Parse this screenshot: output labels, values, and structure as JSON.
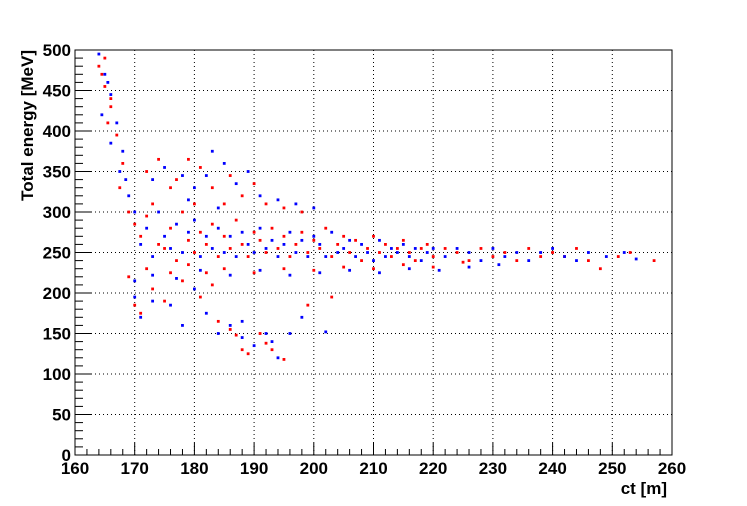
{
  "chart_data": {
    "type": "scatter",
    "title": "",
    "xlabel": "ct [m]",
    "ylabel": "Total energy [MeV]",
    "xlim": [
      160,
      260
    ],
    "ylim": [
      0,
      500
    ],
    "xticks": [
      160,
      170,
      180,
      190,
      200,
      210,
      220,
      230,
      240,
      250,
      260
    ],
    "yticks": [
      0,
      50,
      100,
      150,
      200,
      250,
      300,
      350,
      400,
      450,
      500
    ],
    "grid": true,
    "legend": "none",
    "series": [
      {
        "color": "#ff0000",
        "points": [
          [
            164,
            480
          ],
          [
            165,
            455
          ],
          [
            166,
            430
          ],
          [
            164.5,
            470
          ],
          [
            165.5,
            410
          ],
          [
            167,
            395
          ],
          [
            166,
            440
          ],
          [
            165,
            490
          ],
          [
            168,
            360
          ],
          [
            167.5,
            330
          ],
          [
            169,
            300
          ],
          [
            170,
            285
          ],
          [
            171,
            270
          ],
          [
            172,
            295
          ],
          [
            173,
            310
          ],
          [
            174,
            260
          ],
          [
            175,
            255
          ],
          [
            176,
            280
          ],
          [
            177,
            240
          ],
          [
            178,
            300
          ],
          [
            179,
            265
          ],
          [
            180,
            250
          ],
          [
            181,
            275
          ],
          [
            182,
            260
          ],
          [
            183,
            285
          ],
          [
            184,
            245
          ],
          [
            185,
            270
          ],
          [
            186,
            255
          ],
          [
            187,
            290
          ],
          [
            188,
            260
          ],
          [
            189,
            245
          ],
          [
            190,
            275
          ],
          [
            191,
            265
          ],
          [
            192,
            250
          ],
          [
            193,
            280
          ],
          [
            194,
            255
          ],
          [
            195,
            270
          ],
          [
            196,
            245
          ],
          [
            197,
            260
          ],
          [
            198,
            275
          ],
          [
            199,
            250
          ],
          [
            200,
            265
          ],
          [
            201,
            255
          ],
          [
            202,
            280
          ],
          [
            203,
            245
          ],
          [
            204,
            260
          ],
          [
            205,
            270
          ],
          [
            206,
            250
          ],
          [
            207,
            265
          ],
          [
            208,
            240
          ],
          [
            209,
            255
          ],
          [
            210,
            270
          ],
          [
            211,
            250
          ],
          [
            212,
            260
          ],
          [
            213,
            245
          ],
          [
            214,
            255
          ],
          [
            215,
            265
          ],
          [
            216,
            250
          ],
          [
            217,
            240
          ],
          [
            218,
            255
          ],
          [
            219,
            260
          ],
          [
            220,
            245
          ],
          [
            222,
            255
          ],
          [
            224,
            250
          ],
          [
            226,
            240
          ],
          [
            228,
            255
          ],
          [
            230,
            245
          ],
          [
            232,
            250
          ],
          [
            234,
            240
          ],
          [
            236,
            255
          ],
          [
            238,
            245
          ],
          [
            240,
            250
          ],
          [
            242,
            245
          ],
          [
            244,
            255
          ],
          [
            246,
            240
          ],
          [
            248,
            230
          ],
          [
            251,
            245
          ],
          [
            253,
            250
          ],
          [
            257,
            240
          ],
          [
            170,
            185
          ],
          [
            171,
            175
          ],
          [
            173,
            205
          ],
          [
            175,
            190
          ],
          [
            178,
            215
          ],
          [
            181,
            195
          ],
          [
            184,
            165
          ],
          [
            186,
            155
          ],
          [
            188,
            130
          ],
          [
            189,
            125
          ],
          [
            191,
            150
          ],
          [
            193,
            130
          ],
          [
            195,
            118
          ],
          [
            183,
            210
          ],
          [
            177,
            340
          ],
          [
            179,
            365
          ],
          [
            181,
            355
          ],
          [
            183,
            330
          ],
          [
            186,
            345
          ],
          [
            188,
            320
          ],
          [
            190,
            335
          ],
          [
            192,
            310
          ],
          [
            195,
            305
          ],
          [
            198,
            300
          ],
          [
            172,
            350
          ],
          [
            174,
            365
          ],
          [
            176,
            330
          ],
          [
            180,
            310
          ],
          [
            185,
            310
          ],
          [
            169,
            220
          ],
          [
            172,
            230
          ],
          [
            176,
            225
          ],
          [
            179,
            235
          ],
          [
            182,
            225
          ],
          [
            185,
            230
          ],
          [
            190,
            225
          ],
          [
            195,
            230
          ],
          [
            200,
            228
          ],
          [
            205,
            232
          ],
          [
            210,
            230
          ],
          [
            215,
            235
          ],
          [
            220,
            232
          ],
          [
            225,
            238
          ],
          [
            187,
            148
          ],
          [
            192,
            138
          ],
          [
            199,
            185
          ],
          [
            203,
            195
          ]
        ]
      },
      {
        "color": "#0000ff",
        "points": [
          [
            164,
            495
          ],
          [
            165,
            470
          ],
          [
            166,
            445
          ],
          [
            164.5,
            420
          ],
          [
            165.5,
            460
          ],
          [
            167,
            410
          ],
          [
            166,
            385
          ],
          [
            168,
            375
          ],
          [
            167.5,
            350
          ],
          [
            168.5,
            340
          ],
          [
            169,
            320
          ],
          [
            170,
            300
          ],
          [
            171,
            260
          ],
          [
            172,
            280
          ],
          [
            173,
            245
          ],
          [
            174,
            300
          ],
          [
            175,
            270
          ],
          [
            176,
            255
          ],
          [
            177,
            285
          ],
          [
            178,
            250
          ],
          [
            179,
            275
          ],
          [
            180,
            290
          ],
          [
            181,
            245
          ],
          [
            182,
            270
          ],
          [
            183,
            255
          ],
          [
            184,
            280
          ],
          [
            185,
            250
          ],
          [
            186,
            270
          ],
          [
            187,
            245
          ],
          [
            188,
            275
          ],
          [
            189,
            260
          ],
          [
            190,
            250
          ],
          [
            191,
            280
          ],
          [
            192,
            255
          ],
          [
            193,
            265
          ],
          [
            194,
            245
          ],
          [
            195,
            260
          ],
          [
            196,
            275
          ],
          [
            197,
            250
          ],
          [
            198,
            265
          ],
          [
            199,
            245
          ],
          [
            200,
            270
          ],
          [
            201,
            260
          ],
          [
            202,
            245
          ],
          [
            203,
            275
          ],
          [
            204,
            250
          ],
          [
            205,
            255
          ],
          [
            206,
            265
          ],
          [
            207,
            245
          ],
          [
            208,
            260
          ],
          [
            209,
            250
          ],
          [
            210,
            240
          ],
          [
            211,
            265
          ],
          [
            212,
            245
          ],
          [
            213,
            255
          ],
          [
            214,
            250
          ],
          [
            215,
            260
          ],
          [
            216,
            245
          ],
          [
            217,
            255
          ],
          [
            218,
            240
          ],
          [
            219,
            250
          ],
          [
            220,
            255
          ],
          [
            222,
            245
          ],
          [
            224,
            255
          ],
          [
            226,
            250
          ],
          [
            228,
            240
          ],
          [
            230,
            255
          ],
          [
            232,
            245
          ],
          [
            234,
            250
          ],
          [
            236,
            240
          ],
          [
            238,
            250
          ],
          [
            240,
            255
          ],
          [
            242,
            245
          ],
          [
            244,
            240
          ],
          [
            246,
            250
          ],
          [
            249,
            245
          ],
          [
            252,
            250
          ],
          [
            254,
            242
          ],
          [
            170,
            195
          ],
          [
            171,
            170
          ],
          [
            173,
            190
          ],
          [
            176,
            185
          ],
          [
            178,
            160
          ],
          [
            180,
            205
          ],
          [
            182,
            175
          ],
          [
            184,
            150
          ],
          [
            186,
            160
          ],
          [
            188,
            145
          ],
          [
            190,
            135
          ],
          [
            192,
            150
          ],
          [
            194,
            120
          ],
          [
            196,
            150
          ],
          [
            202,
            152
          ],
          [
            183,
            375
          ],
          [
            178,
            345
          ],
          [
            180,
            330
          ],
          [
            182,
            345
          ],
          [
            185,
            360
          ],
          [
            187,
            335
          ],
          [
            189,
            350
          ],
          [
            191,
            320
          ],
          [
            194,
            315
          ],
          [
            197,
            310
          ],
          [
            200,
            305
          ],
          [
            173,
            340
          ],
          [
            175,
            355
          ],
          [
            179,
            315
          ],
          [
            184,
            305
          ],
          [
            170,
            215
          ],
          [
            173,
            222
          ],
          [
            177,
            218
          ],
          [
            181,
            228
          ],
          [
            186,
            222
          ],
          [
            191,
            228
          ],
          [
            196,
            222
          ],
          [
            201,
            225
          ],
          [
            206,
            228
          ],
          [
            211,
            225
          ],
          [
            216,
            230
          ],
          [
            221,
            228
          ],
          [
            226,
            232
          ],
          [
            231,
            235
          ],
          [
            188,
            165
          ],
          [
            193,
            140
          ],
          [
            198,
            170
          ]
        ]
      }
    ]
  }
}
